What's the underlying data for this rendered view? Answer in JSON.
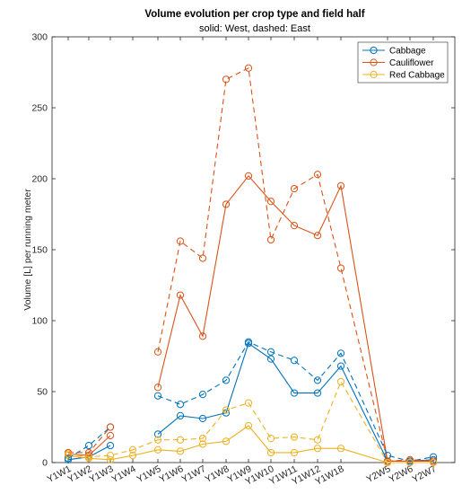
{
  "chart_data": {
    "type": "line",
    "title": "Volume evolution per crop type and field half",
    "subtitle": "solid: West, dashed: East",
    "xlabel": "",
    "ylabel": "Volume [L] per running meter",
    "ylim": [
      0,
      300
    ],
    "yticks": [
      0,
      50,
      100,
      150,
      200,
      250,
      300
    ],
    "categories": [
      "Y1W1",
      "Y1W2",
      "Y1W3",
      "Y1W4",
      "Y1W5",
      "Y1W6",
      "Y1W7",
      "Y1W8",
      "Y1W9",
      "Y1W10",
      "Y1W11",
      "Y1W12",
      "Y1W18",
      "Y2W5",
      "Y2W6",
      "Y2W7"
    ],
    "grid": false,
    "legend_position": "top-right",
    "series": [
      {
        "name": "Cabbage",
        "style": "solid",
        "color": "#0072BD",
        "values": [
          2,
          4,
          12,
          null,
          20,
          33,
          31,
          35,
          84,
          73,
          49,
          49,
          68,
          1,
          1,
          2
        ]
      },
      {
        "name": "Cauliflower",
        "style": "solid",
        "color": "#D95319",
        "values": [
          6,
          5,
          19,
          null,
          53,
          118,
          89,
          182,
          202,
          184,
          167,
          160,
          195,
          1,
          1,
          1
        ]
      },
      {
        "name": "Red Cabbage",
        "style": "solid",
        "color": "#EDB120",
        "values": [
          5,
          3,
          2,
          5,
          9,
          8,
          13,
          15,
          26,
          7,
          7,
          10,
          10,
          0,
          0,
          0
        ]
      },
      {
        "style": "dashed",
        "color": "#0072BD",
        "values": [
          3,
          12,
          25,
          null,
          47,
          41,
          48,
          58,
          85,
          78,
          72,
          58,
          77,
          5,
          1,
          4
        ]
      },
      {
        "style": "dashed",
        "color": "#D95319",
        "values": [
          7,
          7,
          25,
          null,
          78,
          156,
          144,
          270,
          278,
          157,
          193,
          203,
          137,
          1,
          2,
          1
        ]
      },
      {
        "style": "dashed",
        "color": "#EDB120",
        "values": [
          6,
          4,
          5,
          9,
          16,
          16,
          17,
          37,
          42,
          17,
          18,
          16,
          57,
          0,
          0,
          0
        ]
      }
    ]
  }
}
